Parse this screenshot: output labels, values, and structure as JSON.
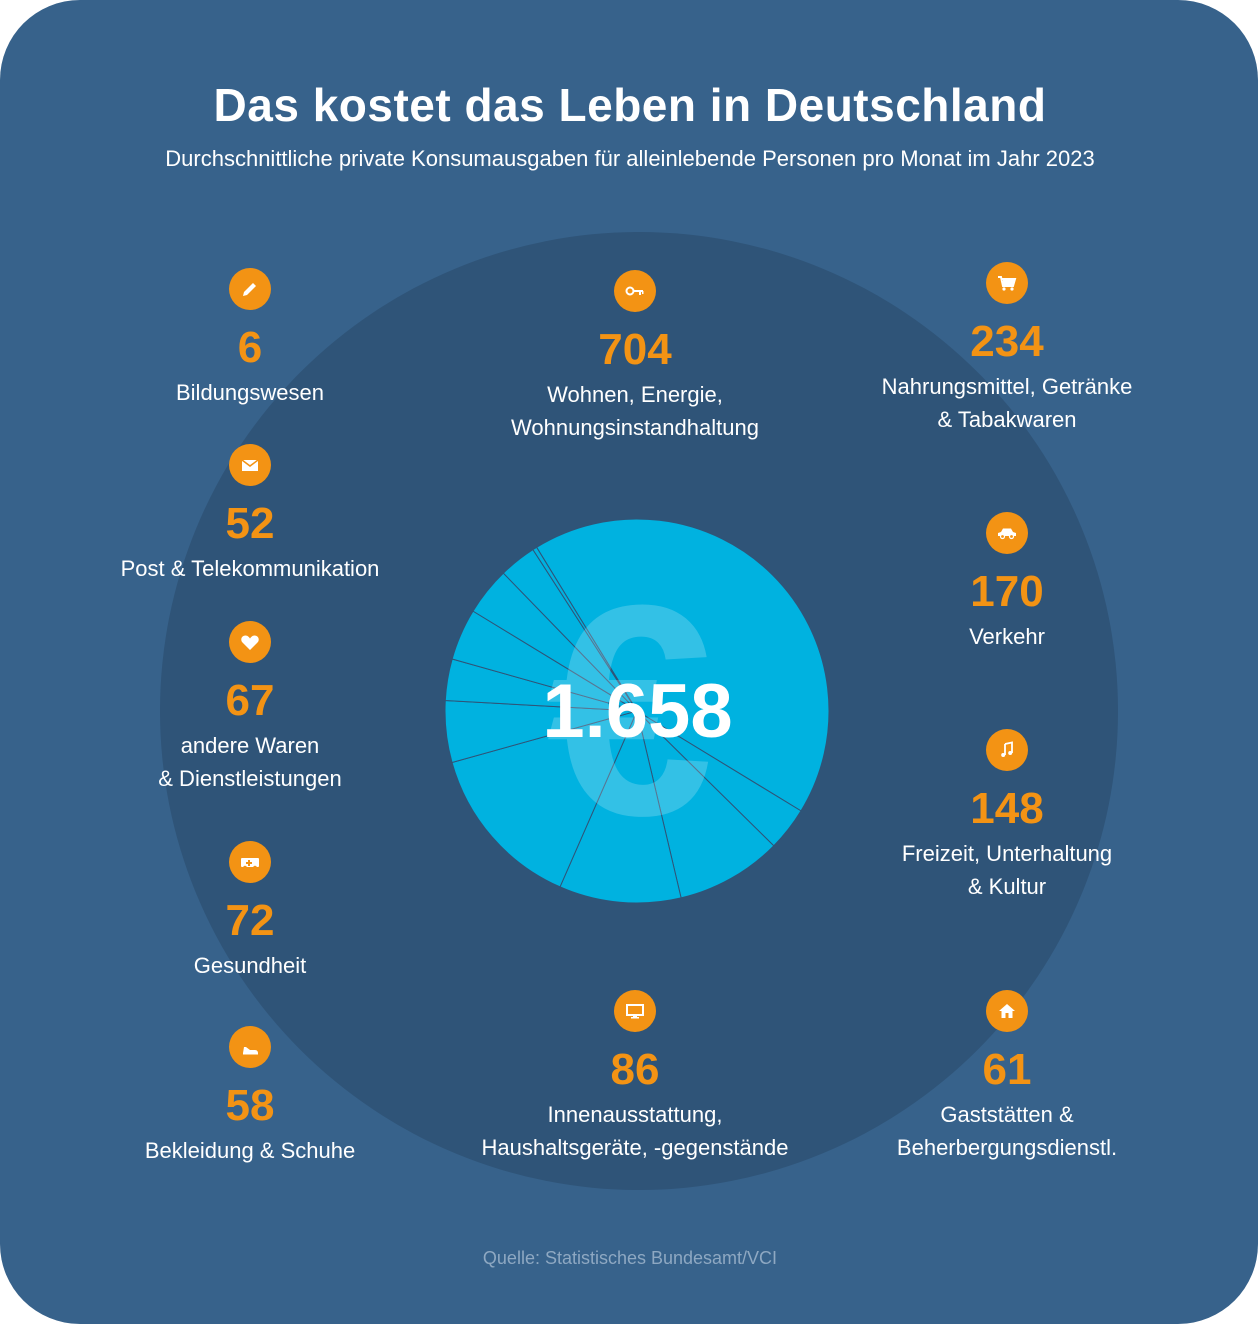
{
  "title": "Das kostet das Leben in Deutschland",
  "subtitle": "Durchschnittliche private Konsumausgaben für alleinlebende Personen pro Monat im Jahr 2023",
  "total": "1.658",
  "source": "Quelle: Statistisches Bundesamt/VCI",
  "colors": {
    "background": "#37628b",
    "ring": "#2f5478",
    "pie": "#00b2e0",
    "accent": "#f39314"
  },
  "chart_data": {
    "type": "pie",
    "title": "Das kostet das Leben in Deutschland",
    "unit": "€ pro Monat",
    "total": 1658,
    "categories": [
      "Bildungswesen",
      "Post & Telekommunikation",
      "andere Waren & Dienstleistungen",
      "Gesundheit",
      "Bekleidung & Schuhe",
      "Wohnen, Energie, Wohnungsinstandhaltung",
      "Innenausstattung, Haushaltsgeräte, -gegenstände",
      "Nahrungsmittel, Getränke & Tabakwaren",
      "Verkehr",
      "Freizeit, Unterhaltung & Kultur",
      "Gaststätten & Beherbergungsdienstl."
    ],
    "values": [
      6,
      52,
      67,
      72,
      58,
      704,
      86,
      234,
      170,
      148,
      61
    ]
  },
  "items": [
    {
      "value": "6",
      "label": "Bildungswesen",
      "icon": "pencil-icon"
    },
    {
      "value": "52",
      "label": "Post & Telekommunikation",
      "icon": "envelope-icon"
    },
    {
      "value": "67",
      "label": "andere Waren\n& Dienstleistungen",
      "icon": "heart-icon"
    },
    {
      "value": "72",
      "label": "Gesundheit",
      "icon": "ambulance-icon"
    },
    {
      "value": "58",
      "label": "Bekleidung & Schuhe",
      "icon": "shoe-icon"
    },
    {
      "value": "704",
      "label": "Wohnen, Energie,\nWohnungsinstandhaltung",
      "icon": "key-icon"
    },
    {
      "value": "86",
      "label": "Innenausstattung,\nHaushaltsgeräte, -gegenstände",
      "icon": "monitor-icon"
    },
    {
      "value": "234",
      "label": "Nahrungsmittel, Getränke\n& Tabakwaren",
      "icon": "cart-icon"
    },
    {
      "value": "170",
      "label": "Verkehr",
      "icon": "car-icon"
    },
    {
      "value": "148",
      "label": "Freizeit, Unterhaltung\n& Kultur",
      "icon": "music-icon"
    },
    {
      "value": "61",
      "label": "Gaststätten &\nBeherbergungsdienstl.",
      "icon": "house-icon"
    }
  ]
}
